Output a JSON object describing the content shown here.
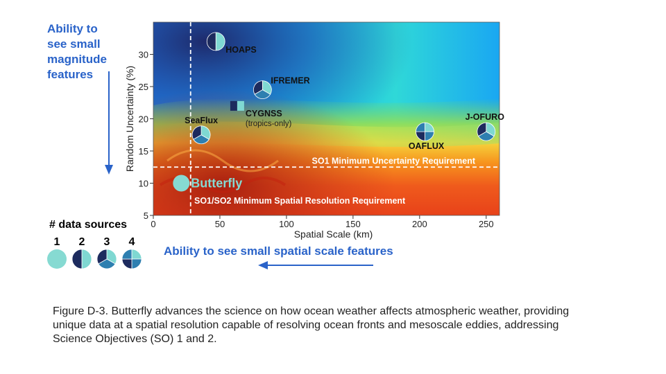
{
  "left_annotation": [
    "Ability to",
    "see small",
    "magnitude",
    "features"
  ],
  "bottom_annotation": "Ability to see small spatial scale features",
  "caption": "Figure D-3. Butterfly advances the science on how ocean weather affects atmospheric weather, providing unique data at a spatial resolution capable of resolving ocean fronts and mesoscale eddies, addressing Science Objectives (SO) 1 and 2.",
  "colors": {
    "accent_blue": "#2a63c9",
    "pie_dark": "#1d2b5e",
    "pie_mid": "#2e7fb0",
    "pie_light": "#7fd8d2",
    "butterfly": "#86dad2"
  },
  "data_sources_legend": {
    "title": "# data sources",
    "items": [
      {
        "label": "1",
        "sources": 1
      },
      {
        "label": "2",
        "sources": 2
      },
      {
        "label": "3",
        "sources": 3
      },
      {
        "label": "4",
        "sources": 4
      }
    ]
  },
  "chart_data": {
    "type": "scatter",
    "xlabel": "Spatial Scale (km)",
    "ylabel": "Random Uncertainty (%)",
    "xlim": [
      0,
      260
    ],
    "ylim": [
      5,
      35
    ],
    "xticks": [
      0,
      50,
      100,
      150,
      200,
      250
    ],
    "yticks": [
      5,
      10,
      15,
      20,
      25,
      30
    ],
    "background": "sea-surface temperature style heatmap image",
    "points": [
      {
        "name": "HOAPS",
        "x": 47,
        "y": 32,
        "sources": 2
      },
      {
        "name": "IFREMER",
        "x": 82,
        "y": 24.5,
        "sources": 3
      },
      {
        "name": "CYGNSS",
        "note": "(tropics-only)",
        "x": 63,
        "y": 22,
        "sources": 2
      },
      {
        "name": "SeaFlux",
        "x": 36,
        "y": 17.5,
        "sources": 3
      },
      {
        "name": "OAFLUX",
        "x": 204,
        "y": 18,
        "sources": 4
      },
      {
        "name": "J-OFURO",
        "x": 250,
        "y": 18,
        "sources": 3
      },
      {
        "name": "Butterfly",
        "x": 21,
        "y": 10,
        "sources": 1
      }
    ],
    "reference_lines": [
      {
        "orientation": "horizontal",
        "value": 12.5,
        "label": "SO1 Minimum Uncertainty Requirement"
      },
      {
        "orientation": "vertical",
        "value": 28,
        "label": "SO1/SO2 Minimum Spatial Resolution Requirement"
      }
    ]
  }
}
